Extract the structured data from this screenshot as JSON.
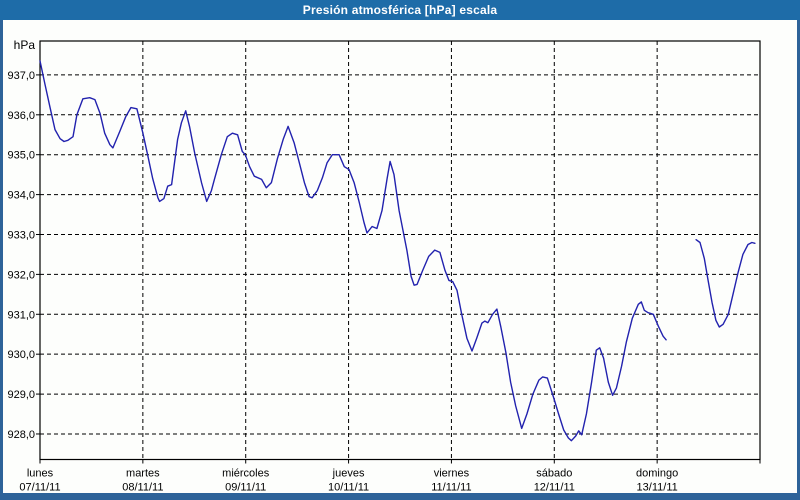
{
  "title_bar": {
    "text": "Presión atmosférica [hPa] escala",
    "background": "#1E6CA8",
    "text_color": "#FFFFFF"
  },
  "frame": {
    "border_color": "#2E6399",
    "chart_background": "#FDFEFC"
  },
  "chart_data": {
    "type": "line",
    "title": "Presión atmosférica [hPa] escala",
    "ylabel": "hPa",
    "xlabel": "",
    "grid": "dashed-black",
    "legend": "none",
    "line_color": "#2222AE",
    "axis_color": "#000000",
    "y_range": [
      927.36,
      937.85
    ],
    "x_range_hours": [
      0,
      168
    ],
    "y_ticks": [
      {
        "value": 937,
        "label": "937,0"
      },
      {
        "value": 936,
        "label": "936,0"
      },
      {
        "value": 935,
        "label": "935,0"
      },
      {
        "value": 934,
        "label": "934,0"
      },
      {
        "value": 933,
        "label": "933,0"
      },
      {
        "value": 932,
        "label": "932,0"
      },
      {
        "value": 931,
        "label": "931,0"
      },
      {
        "value": 930,
        "label": "930,0"
      },
      {
        "value": 929,
        "label": "929,0"
      },
      {
        "value": 928,
        "label": "928,0"
      }
    ],
    "x_days": [
      {
        "name": "lunes",
        "date": "07/11/11"
      },
      {
        "name": "martes",
        "date": "08/11/11"
      },
      {
        "name": "miércoles",
        "date": "09/11/11"
      },
      {
        "name": "jueves",
        "date": "10/11/11"
      },
      {
        "name": "viernes",
        "date": "11/11/11"
      },
      {
        "name": "sábado",
        "date": "12/11/11"
      },
      {
        "name": "domingo",
        "date": "13/11/11"
      }
    ],
    "series": [
      {
        "name": "Presión atmosférica [hPa]",
        "segments": [
          [
            [
              0,
              937.35
            ],
            [
              1.2,
              936.75
            ],
            [
              2.3,
              936.2
            ],
            [
              3.5,
              935.63
            ],
            [
              4.7,
              935.4
            ],
            [
              5.6,
              935.33
            ],
            [
              6.5,
              935.36
            ],
            [
              7.7,
              935.45
            ],
            [
              8.6,
              936.0
            ],
            [
              10,
              936.4
            ],
            [
              11.6,
              936.43
            ],
            [
              12.8,
              936.38
            ],
            [
              14,
              936.04
            ],
            [
              15.1,
              935.54
            ],
            [
              16.3,
              935.25
            ],
            [
              17,
              935.17
            ],
            [
              18.6,
              935.58
            ],
            [
              20,
              935.95
            ],
            [
              21.2,
              936.18
            ],
            [
              22.6,
              936.15
            ],
            [
              24,
              935.54
            ],
            [
              25.1,
              935.0
            ],
            [
              26.3,
              934.4
            ],
            [
              27.5,
              933.92
            ],
            [
              27.9,
              933.83
            ],
            [
              28.9,
              933.9
            ],
            [
              29.8,
              934.21
            ],
            [
              30.7,
              934.25
            ],
            [
              32.1,
              935.38
            ],
            [
              33,
              935.8
            ],
            [
              34,
              936.1
            ],
            [
              34.9,
              935.7
            ],
            [
              36.1,
              935.04
            ],
            [
              37.7,
              934.29
            ],
            [
              38.9,
              933.83
            ],
            [
              40,
              934.1
            ],
            [
              40.7,
              934.38
            ],
            [
              42.3,
              935.0
            ],
            [
              43.7,
              935.45
            ],
            [
              44.9,
              935.54
            ],
            [
              46.1,
              935.5
            ],
            [
              47.2,
              935.08
            ],
            [
              47.9,
              935.0
            ],
            [
              48.9,
              934.7
            ],
            [
              50,
              934.46
            ],
            [
              51.7,
              934.38
            ],
            [
              52.8,
              934.17
            ],
            [
              54,
              934.3
            ],
            [
              55.4,
              934.9
            ],
            [
              56.8,
              935.4
            ],
            [
              57.9,
              935.71
            ],
            [
              59.3,
              935.3
            ],
            [
              60.5,
              934.8
            ],
            [
              61.7,
              934.3
            ],
            [
              62.8,
              933.95
            ],
            [
              63.5,
              933.92
            ],
            [
              64.7,
              934.1
            ],
            [
              65.9,
              934.42
            ],
            [
              67,
              934.8
            ],
            [
              68.2,
              935.0
            ],
            [
              69.8,
              935.0
            ],
            [
              71,
              934.7
            ],
            [
              72.1,
              934.63
            ],
            [
              73.3,
              934.3
            ],
            [
              74.5,
              933.8
            ],
            [
              75.6,
              933.3
            ],
            [
              76.3,
              933.04
            ],
            [
              77.5,
              933.2
            ],
            [
              78.6,
              933.15
            ],
            [
              79.8,
              933.6
            ],
            [
              81,
              934.4
            ],
            [
              81.7,
              934.83
            ],
            [
              82.6,
              934.5
            ],
            [
              83.8,
              933.6
            ],
            [
              84.7,
              933.1
            ],
            [
              85.6,
              932.6
            ],
            [
              86.6,
              931.95
            ],
            [
              87.3,
              931.73
            ],
            [
              88,
              931.75
            ],
            [
              89.3,
              932.1
            ],
            [
              90.7,
              932.45
            ],
            [
              92.1,
              932.61
            ],
            [
              93.3,
              932.55
            ],
            [
              94.5,
              932.1
            ],
            [
              95.4,
              931.85
            ],
            [
              96.3,
              931.82
            ],
            [
              97.3,
              931.6
            ],
            [
              98.4,
              931.0
            ],
            [
              99.6,
              930.4
            ],
            [
              100.8,
              930.08
            ],
            [
              101.9,
              930.4
            ],
            [
              103.1,
              930.78
            ],
            [
              103.8,
              930.83
            ],
            [
              104.5,
              930.79
            ],
            [
              105.6,
              931.0
            ],
            [
              106.6,
              931.13
            ],
            [
              107.5,
              930.7
            ],
            [
              108.7,
              930.04
            ],
            [
              109.8,
              929.3
            ],
            [
              111,
              928.7
            ],
            [
              112.4,
              928.14
            ],
            [
              113.6,
              928.5
            ],
            [
              115,
              929.0
            ],
            [
              116.4,
              929.35
            ],
            [
              117.3,
              929.43
            ],
            [
              118.4,
              929.4
            ],
            [
              119.8,
              928.93
            ],
            [
              121,
              928.5
            ],
            [
              122.2,
              928.1
            ],
            [
              123.3,
              927.9
            ],
            [
              124,
              927.83
            ],
            [
              125,
              927.95
            ],
            [
              125.7,
              928.08
            ],
            [
              126.4,
              927.98
            ],
            [
              127.5,
              928.5
            ],
            [
              128.7,
              929.3
            ],
            [
              129.8,
              930.1
            ],
            [
              130.6,
              930.16
            ],
            [
              131.5,
              929.9
            ],
            [
              132.6,
              929.3
            ],
            [
              133.6,
              928.97
            ],
            [
              134.5,
              929.15
            ],
            [
              135.7,
              929.7
            ],
            [
              136.8,
              930.3
            ],
            [
              138.2,
              930.9
            ],
            [
              139.6,
              931.25
            ],
            [
              140.3,
              931.31
            ],
            [
              141,
              931.1
            ],
            [
              141.9,
              931.04
            ],
            [
              143.1,
              931.0
            ],
            [
              144.3,
              930.7
            ],
            [
              145.4,
              930.45
            ],
            [
              146.1,
              930.36
            ]
          ],
          [
            [
              153.1,
              932.87
            ],
            [
              154,
              932.8
            ],
            [
              155,
              932.4
            ],
            [
              155.9,
              931.85
            ],
            [
              156.8,
              931.3
            ],
            [
              157.7,
              930.85
            ],
            [
              158.5,
              930.68
            ],
            [
              159.4,
              930.75
            ],
            [
              160.6,
              931.0
            ],
            [
              161.7,
              931.5
            ],
            [
              162.9,
              932.05
            ],
            [
              164,
              932.5
            ],
            [
              165.2,
              932.75
            ],
            [
              166.1,
              932.8
            ],
            [
              166.8,
              932.78
            ]
          ]
        ]
      }
    ]
  }
}
